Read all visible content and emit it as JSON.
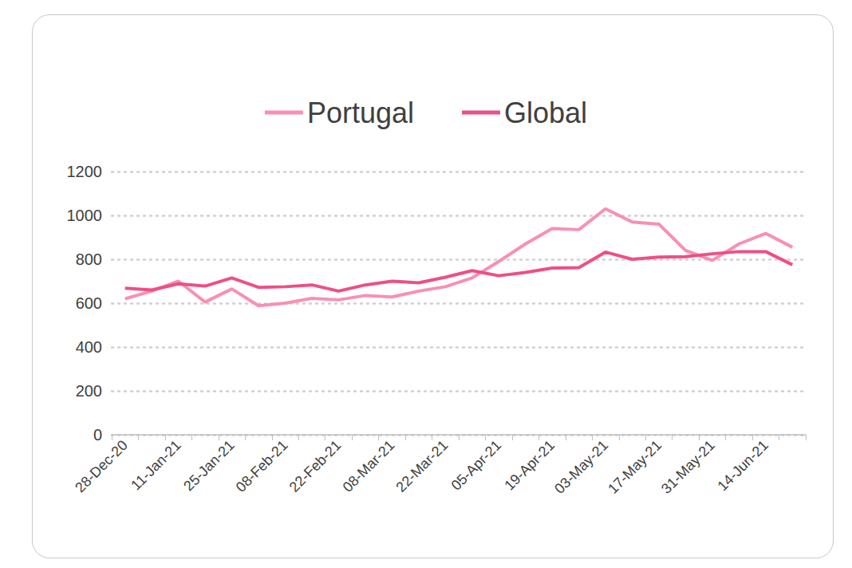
{
  "chart_data": {
    "type": "line",
    "categories": [
      "28-Dec-20",
      null,
      "11-Jan-21",
      null,
      "25-Jan-21",
      null,
      "08-Feb-21",
      null,
      "22-Feb-21",
      null,
      "08-Mar-21",
      null,
      "22-Mar-21",
      null,
      "05-Apr-21",
      null,
      "19-Apr-21",
      null,
      "03-May-21",
      null,
      "17-May-21",
      null,
      "31-May-21",
      null,
      "14-Jun-21",
      null
    ],
    "series": [
      {
        "name": "Portugal",
        "color": "#f990b1",
        "values": [
          620,
          655,
          700,
          605,
          665,
          588,
          600,
          622,
          615,
          635,
          628,
          655,
          675,
          715,
          790,
          870,
          940,
          935,
          1030,
          970,
          960,
          840,
          795,
          870,
          918,
          855
        ]
      },
      {
        "name": "Global",
        "color": "#ee4f85",
        "values": [
          668,
          660,
          688,
          678,
          715,
          672,
          675,
          683,
          655,
          683,
          700,
          693,
          718,
          748,
          725,
          740,
          760,
          762,
          833,
          800,
          810,
          812,
          825,
          835,
          835,
          775
        ]
      }
    ],
    "ylim": [
      0,
      1200
    ],
    "yticks": [
      0,
      200,
      400,
      600,
      800,
      1000,
      1200
    ],
    "grid": true,
    "legend": "top"
  }
}
